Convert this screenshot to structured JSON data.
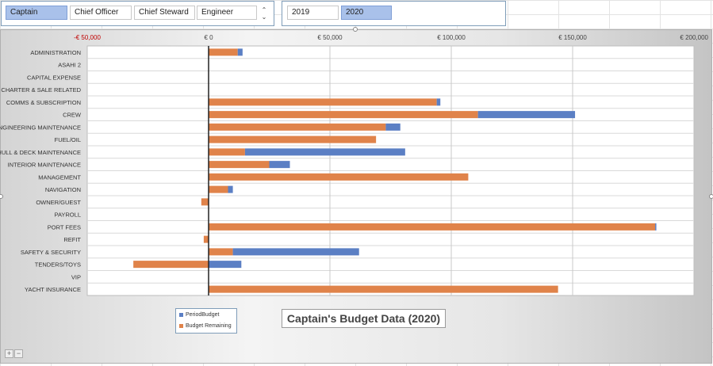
{
  "slicer_role": {
    "items": [
      {
        "label": "Captain",
        "selected": true
      },
      {
        "label": "Chief Officer",
        "selected": false
      },
      {
        "label": "Chief Steward",
        "selected": false
      },
      {
        "label": "Engineer",
        "selected": false
      }
    ],
    "scroll_up": "⌃",
    "scroll_down": "⌄"
  },
  "slicer_year": {
    "items": [
      {
        "label": "2019",
        "selected": false
      },
      {
        "label": "2020",
        "selected": true
      }
    ]
  },
  "zoom": {
    "plus": "+",
    "minus": "−"
  },
  "colors": {
    "period_budget": "#5b7fc4",
    "budget_remaining": "#e0834a",
    "negative_tick": "#c00000",
    "selected_slicer": "#a9c1ea"
  },
  "chart_data": {
    "type": "bar",
    "orientation": "horizontal",
    "stacked": true,
    "title": "Captain's Budget Data (2020)",
    "xlim": [
      -50000,
      200000
    ],
    "x_ticks": [
      {
        "value": -50000,
        "label": "-€ 50,000",
        "negative": true
      },
      {
        "value": 0,
        "label": "€ 0"
      },
      {
        "value": 50000,
        "label": "€ 50,000"
      },
      {
        "value": 100000,
        "label": "€ 100,000"
      },
      {
        "value": 150000,
        "label": "€ 150,000"
      },
      {
        "value": 200000,
        "label": "€ 200,000"
      }
    ],
    "categories": [
      "ADMINISTRATION",
      "ASAHI 2",
      "CAPITAL EXPENSE",
      "CHARTER & SALE RELATED",
      "COMMS & SUBSCRIPTION",
      "CREW",
      "ENGINEERING MAINTENANCE",
      "FUEL/OIL",
      "HULL & DECK MAINTENANCE",
      "INTERIOR MAINTENANCE",
      "MANAGEMENT",
      "NAVIGATION",
      "OWNER/GUEST",
      "PAYROLL",
      "PORT FEES",
      "REFIT",
      "SAFETY & SECURITY",
      "TENDERS/TOYS",
      "VIP",
      "YACHT INSURANCE"
    ],
    "series": [
      {
        "name": "Budget Remaining",
        "color": "#e0834a",
        "values": [
          12000,
          0,
          0,
          0,
          94000,
          111000,
          73000,
          69000,
          15000,
          25000,
          107000,
          8000,
          -3000,
          0,
          184000,
          -2000,
          10000,
          -31000,
          0,
          144000
        ]
      },
      {
        "name": "PeriodBudget",
        "color": "#5b7fc4",
        "values": [
          2000,
          0,
          0,
          0,
          1500,
          40000,
          6000,
          0,
          66000,
          8500,
          0,
          2000,
          0,
          0,
          500,
          0,
          52000,
          13500,
          0,
          0
        ]
      }
    ],
    "legend": {
      "position": "bottom-left",
      "entries": [
        "PeriodBudget",
        "Budget Remaining"
      ]
    },
    "grid": true
  }
}
